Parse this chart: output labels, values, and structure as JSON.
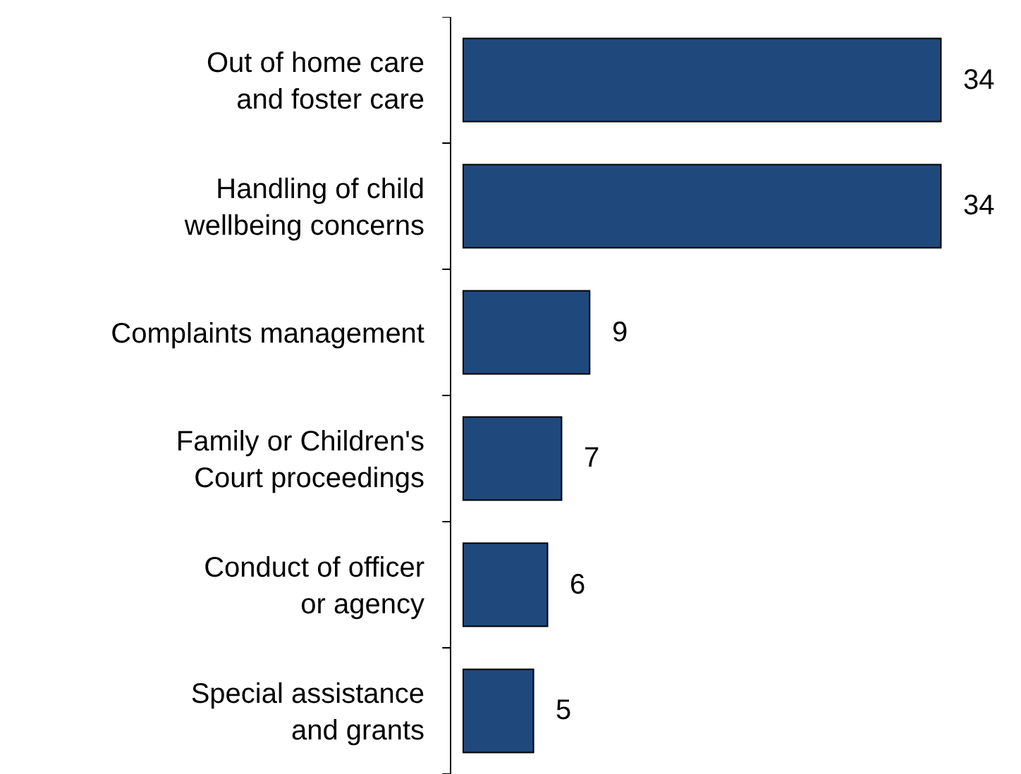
{
  "chart_data": {
    "type": "bar",
    "orientation": "horizontal",
    "categories": [
      "Out of home care\nand foster care",
      "Handling of child\nwellbeing concerns",
      "Complaints management",
      "Family or Children's\nCourt proceedings",
      "Conduct of officer\nor agency",
      "Special assistance\nand grants"
    ],
    "values": [
      34,
      34,
      9,
      7,
      6,
      5
    ],
    "color": "#1f497d",
    "data_labels": true
  }
}
